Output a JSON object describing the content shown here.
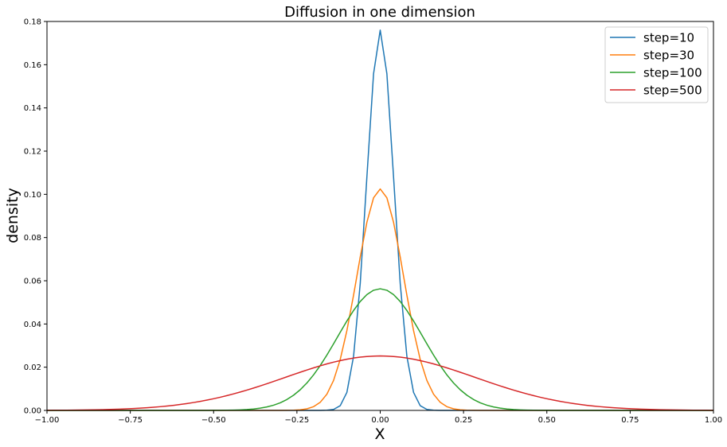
{
  "chart_data": {
    "type": "line",
    "title": "Diffusion in one dimension",
    "xlabel": "X",
    "ylabel": "density",
    "xlim": [
      -1.0,
      1.0
    ],
    "ylim": [
      0.0,
      0.18
    ],
    "xticks": [
      "-1.00",
      "-0.75",
      "-0.50",
      "-0.25",
      "0.00",
      "0.25",
      "0.50",
      "0.75",
      "1.00"
    ],
    "yticks": [
      "0.00",
      "0.02",
      "0.04",
      "0.06",
      "0.08",
      "0.10",
      "0.12",
      "0.14",
      "0.16",
      "0.18"
    ],
    "grid": false,
    "legend_position": "top-right",
    "series": [
      {
        "name": "step=10",
        "color": "#1f77b4",
        "peak": 0.176,
        "sigma": 0.0405
      },
      {
        "name": "step=30",
        "color": "#ff7f0e",
        "peak": 0.1025,
        "sigma": 0.07
      },
      {
        "name": "step=100",
        "color": "#2ca02c",
        "peak": 0.0563,
        "sigma": 0.1275
      },
      {
        "name": "step=500",
        "color": "#d62728",
        "peak": 0.0252,
        "sigma": 0.285
      }
    ]
  }
}
